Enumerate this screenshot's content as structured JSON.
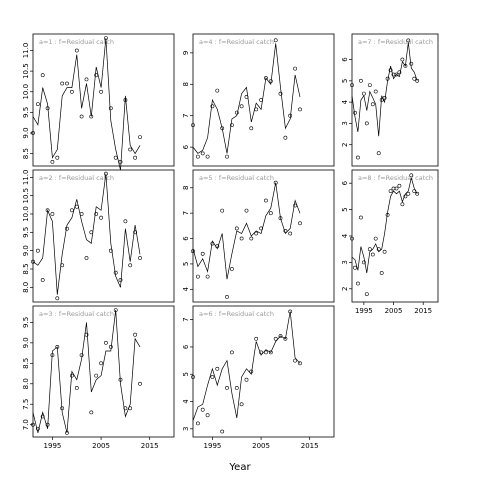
{
  "chart_data": {
    "type": "scatter",
    "xlabel": "Year",
    "ylabel": "",
    "grid": false,
    "legend": "none",
    "colors": {
      "points": "#000000",
      "line": "#000000",
      "panel_title": "#9a9a9a"
    },
    "panels": [
      {
        "title": "a=1 : f=Residual catch",
        "xlim": [
          1991,
          2020
        ],
        "xticks": [
          1995,
          2005,
          2015
        ],
        "ylim": [
          8.2,
          11.4
        ],
        "yticks": [
          8.5,
          9.0,
          9.5,
          10.0,
          10.5,
          11.0
        ],
        "x": [
          1991,
          1992,
          1993,
          1994,
          1995,
          1996,
          1997,
          1998,
          1999,
          2000,
          2001,
          2002,
          2003,
          2004,
          2005,
          2006,
          2007,
          2008,
          2009,
          2010,
          2011,
          2012,
          2013,
          2014,
          2015,
          2016,
          2017,
          2018,
          2019
        ],
        "observed": [
          9.0,
          9.7,
          10.4,
          9.6,
          8.3,
          8.4,
          10.2,
          10.2,
          10.0,
          11.0,
          9.4,
          10.3,
          9.4,
          10.4,
          10.0,
          11.3,
          9.6,
          8.4,
          8.3,
          9.8,
          8.6,
          8.4,
          8.9
        ],
        "observed_x": [
          1991,
          1992,
          1993,
          1994,
          1995,
          1996,
          1997,
          1998,
          1999,
          2000,
          2001,
          2002,
          2003,
          2004,
          2005,
          2006,
          2007,
          2008,
          2009,
          2010,
          2011,
          2012,
          2013
        ],
        "fitted": [
          9.4,
          9.2,
          10.1,
          9.7,
          8.4,
          8.6,
          9.9,
          10.1,
          10.1,
          10.9,
          9.6,
          10.2,
          9.4,
          10.6,
          10.1,
          11.3,
          9.3,
          8.6,
          8.1,
          9.9,
          8.7,
          8.5,
          8.7
        ]
      },
      {
        "title": "a=2 : f=Residual catch",
        "xlim": [
          1991,
          2020
        ],
        "xticks": [
          1995,
          2005,
          2015
        ],
        "ylim": [
          7.6,
          11.2
        ],
        "yticks": [
          8.0,
          8.5,
          9.0,
          9.5,
          10.0,
          10.5,
          11.0
        ],
        "observed_x": [
          1991,
          1992,
          1993,
          1994,
          1995,
          1996,
          1997,
          1998,
          1999,
          2000,
          2001,
          2002,
          2003,
          2004,
          2005,
          2006,
          2007,
          2008,
          2009,
          2010,
          2011,
          2012,
          2013
        ],
        "observed": [
          8.7,
          9.0,
          8.2,
          10.1,
          10.0,
          7.7,
          8.6,
          9.6,
          10.1,
          10.2,
          10.0,
          8.8,
          9.5,
          10.0,
          9.9,
          11.1,
          9.0,
          8.4,
          8.2,
          9.8,
          8.6,
          9.5,
          8.8
        ],
        "fitted": [
          8.7,
          8.6,
          8.8,
          10.1,
          9.8,
          7.8,
          8.9,
          9.7,
          9.9,
          10.4,
          9.8,
          9.3,
          9.2,
          10.2,
          10.1,
          11.1,
          9.2,
          8.3,
          8.0,
          9.6,
          8.7,
          9.7,
          8.9
        ]
      },
      {
        "title": "a=3 : f=Residual catch",
        "xlim": [
          1991,
          2020
        ],
        "xticks": [
          1995,
          2005,
          2015
        ],
        "ylim": [
          6.7,
          9.9
        ],
        "yticks": [
          7.0,
          7.5,
          8.0,
          8.5,
          9.0,
          9.5
        ],
        "observed_x": [
          1991,
          1992,
          1993,
          1994,
          1995,
          1996,
          1997,
          1998,
          1999,
          2000,
          2001,
          2002,
          2003,
          2004,
          2005,
          2006,
          2007,
          2008,
          2009,
          2010,
          2011,
          2012,
          2013
        ],
        "observed": [
          7.0,
          6.9,
          7.2,
          7.0,
          8.7,
          8.9,
          7.4,
          6.8,
          8.2,
          7.9,
          8.7,
          9.2,
          7.3,
          8.2,
          8.5,
          9.0,
          8.9,
          9.8,
          8.1,
          7.4,
          7.4,
          9.2,
          8.0
        ],
        "fitted": [
          7.3,
          6.8,
          7.3,
          6.9,
          8.8,
          8.9,
          7.3,
          6.8,
          8.3,
          8.1,
          8.6,
          9.5,
          7.8,
          8.1,
          8.2,
          8.8,
          8.8,
          9.8,
          8.0,
          7.2,
          7.5,
          9.1,
          8.9
        ]
      },
      {
        "title": "a=4 : f=Residual catch",
        "xlim": [
          1991,
          2020
        ],
        "xticks": [
          1995,
          2005,
          2015
        ],
        "ylim": [
          5.4,
          9.6
        ],
        "yticks": [
          6,
          7,
          8,
          9
        ],
        "observed_x": [
          1991,
          1992,
          1993,
          1994,
          1995,
          1996,
          1997,
          1998,
          1999,
          2000,
          2001,
          2002,
          2003,
          2004,
          2005,
          2006,
          2007,
          2008,
          2009,
          2010,
          2011,
          2012,
          2013
        ],
        "observed": [
          6.7,
          5.7,
          5.8,
          5.7,
          7.3,
          7.8,
          6.6,
          5.7,
          6.7,
          7.1,
          7.3,
          7.6,
          6.6,
          7.2,
          7.5,
          8.2,
          8.1,
          9.4,
          7.7,
          6.3,
          7.0,
          8.5,
          7.2
        ],
        "fitted": [
          6.0,
          5.8,
          5.9,
          6.3,
          7.5,
          7.2,
          6.6,
          5.8,
          6.9,
          7.0,
          7.7,
          7.9,
          6.8,
          7.4,
          7.2,
          8.2,
          8.0,
          9.3,
          7.9,
          6.6,
          6.9,
          8.3,
          7.6
        ]
      },
      {
        "title": "a=5 : f=Residual catch",
        "xlim": [
          1991,
          2020
        ],
        "xticks": [
          1995,
          2005,
          2015
        ],
        "ylim": [
          3.5,
          8.7
        ],
        "yticks": [
          4,
          5,
          6,
          7,
          8
        ],
        "observed_x": [
          1991,
          1992,
          1993,
          1994,
          1995,
          1996,
          1997,
          1998,
          1999,
          2000,
          2001,
          2002,
          2003,
          2004,
          2005,
          2006,
          2007,
          2008,
          2009,
          2010,
          2011,
          2012,
          2013
        ],
        "observed": [
          5.5,
          4.5,
          5.4,
          4.5,
          5.8,
          5.7,
          7.1,
          3.7,
          4.8,
          6.4,
          6.0,
          7.1,
          6.0,
          6.2,
          6.4,
          7.5,
          7.0,
          8.2,
          6.8,
          6.3,
          6.2,
          7.3,
          6.6
        ],
        "fitted": [
          5.6,
          4.9,
          5.2,
          4.7,
          5.9,
          5.6,
          6.2,
          4.4,
          5.4,
          6.3,
          6.2,
          6.6,
          6.1,
          6.3,
          6.2,
          6.9,
          7.2,
          8.2,
          6.8,
          6.2,
          6.4,
          7.5,
          7.0
        ]
      },
      {
        "title": "a=6 : f=Residual catch",
        "xlim": [
          1991,
          2020
        ],
        "xticks": [
          1995,
          2005,
          2015
        ],
        "ylim": [
          2.7,
          7.5
        ],
        "yticks": [
          3,
          4,
          5,
          6,
          7
        ],
        "observed_x": [
          1991,
          1992,
          1993,
          1994,
          1995,
          1996,
          1997,
          1998,
          1999,
          2000,
          2001,
          2002,
          2003,
          2004,
          2005,
          2006,
          2007,
          2008,
          2009,
          2010,
          2011,
          2012,
          2013
        ],
        "observed": [
          4.9,
          3.2,
          3.7,
          3.5,
          4.9,
          5.2,
          2.9,
          4.5,
          5.8,
          4.5,
          3.9,
          4.8,
          5.1,
          6.3,
          5.8,
          5.8,
          5.8,
          6.3,
          6.4,
          6.3,
          7.3,
          5.5,
          5.4
        ],
        "fitted": [
          3.3,
          3.8,
          3.9,
          4.6,
          5.2,
          4.6,
          5.2,
          5.5,
          4.3,
          3.4,
          4.9,
          5.2,
          5.0,
          6.2,
          5.7,
          5.9,
          5.8,
          6.2,
          6.4,
          6.3,
          7.3,
          5.6,
          5.4
        ]
      },
      {
        "title": "a=7 : f=Residual catch",
        "xlim": [
          1991,
          2020
        ],
        "xticks": [
          1995,
          2005,
          2015
        ],
        "ylim": [
          1.0,
          7.2
        ],
        "yticks": [
          2,
          3,
          4,
          5,
          6
        ],
        "observed_x": [
          1991,
          1992,
          1993,
          1994,
          1995,
          1996,
          1997,
          1998,
          1999,
          2000,
          2001,
          2002,
          2003,
          2004,
          2005,
          2006,
          2007,
          2008,
          2009,
          2010,
          2011,
          2012,
          2013
        ],
        "observed": [
          4.8,
          3.5,
          1.4,
          5.0,
          4.4,
          3.0,
          4.8,
          3.9,
          4.5,
          1.6,
          4.1,
          4.2,
          5.1,
          5.5,
          5.3,
          5.3,
          5.4,
          6.0,
          5.7,
          6.9,
          5.8,
          5.1,
          5.0
        ],
        "fitted": [
          4.3,
          3.3,
          2.6,
          4.1,
          4.3,
          3.6,
          4.5,
          4.2,
          3.9,
          2.4,
          4.3,
          4.0,
          5.0,
          5.7,
          5.1,
          5.3,
          5.2,
          5.9,
          5.7,
          6.8,
          5.6,
          5.4,
          5.0
        ]
      },
      {
        "title": "a=8 : f=Residual catch",
        "xlim": [
          1991,
          2020
        ],
        "xticks": [
          1995,
          2005,
          2015
        ],
        "ylim": [
          1.5,
          6.5
        ],
        "yticks": [
          2,
          3,
          4,
          5,
          6
        ],
        "observed_x": [
          1991,
          1992,
          1993,
          1994,
          1995,
          1996,
          1997,
          1998,
          1999,
          2000,
          2001,
          2002,
          2003,
          2004,
          2005,
          2006,
          2007,
          2008,
          2009,
          2010,
          2011,
          2012,
          2013
        ],
        "observed": [
          3.9,
          2.8,
          2.2,
          4.7,
          3.0,
          1.8,
          3.5,
          3.3,
          3.9,
          3.5,
          2.6,
          3.4,
          4.8,
          5.7,
          5.8,
          5.8,
          5.9,
          5.2,
          5.5,
          5.6,
          6.3,
          5.7,
          5.6
        ],
        "fitted": [
          3.2,
          3.1,
          2.7,
          3.6,
          3.2,
          2.6,
          3.4,
          3.5,
          3.7,
          3.4,
          3.5,
          4.1,
          4.9,
          5.5,
          5.7,
          5.6,
          5.7,
          5.3,
          5.6,
          5.7,
          6.2,
          5.8,
          5.6
        ]
      }
    ]
  }
}
